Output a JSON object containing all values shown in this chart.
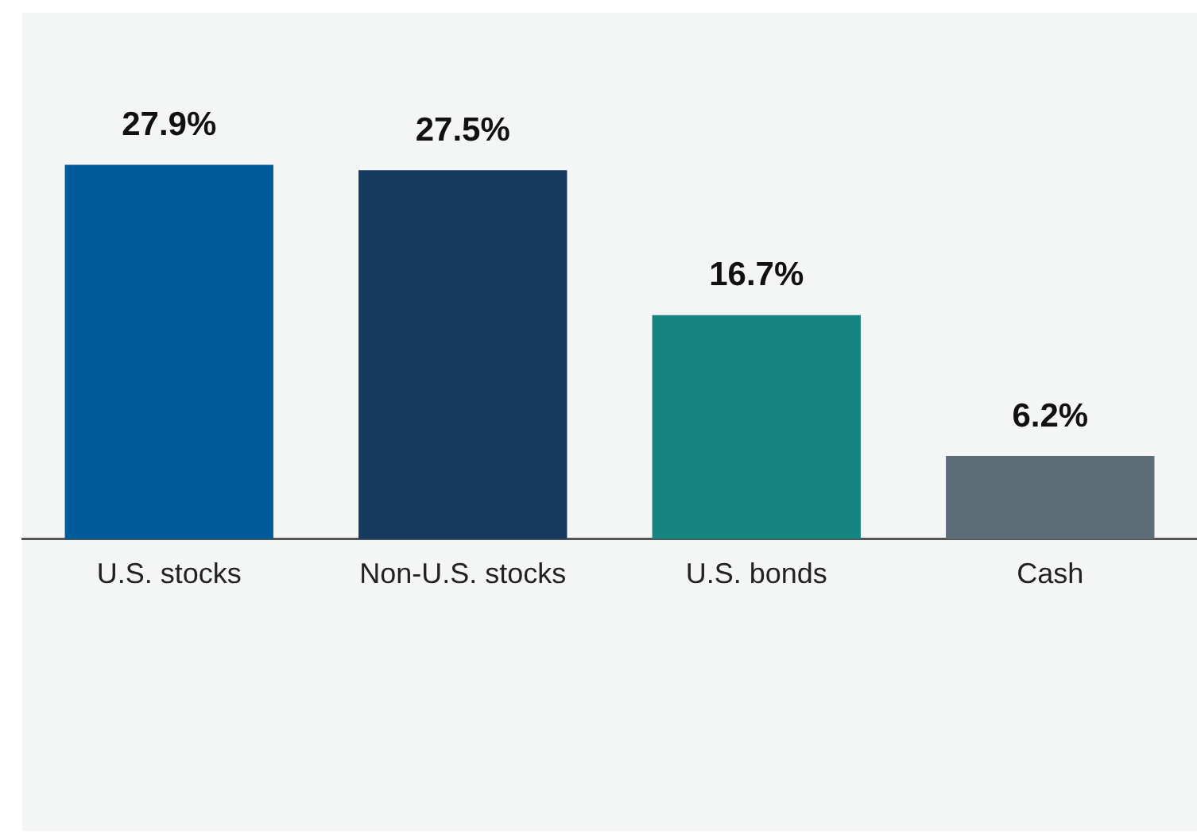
{
  "chart_data": {
    "type": "bar",
    "categories": [
      "U.S. stocks",
      "Non-U.S. stocks",
      "U.S. bonds",
      "Cash"
    ],
    "values": [
      27.9,
      27.5,
      16.7,
      6.2
    ],
    "colors": [
      "#005b9a",
      "#163a5f",
      "#168582",
      "#5d6d78"
    ],
    "value_labels": [
      "27.9%",
      "27.5%",
      "16.7%",
      "6.2%"
    ],
    "grid": false,
    "legend": false
  }
}
